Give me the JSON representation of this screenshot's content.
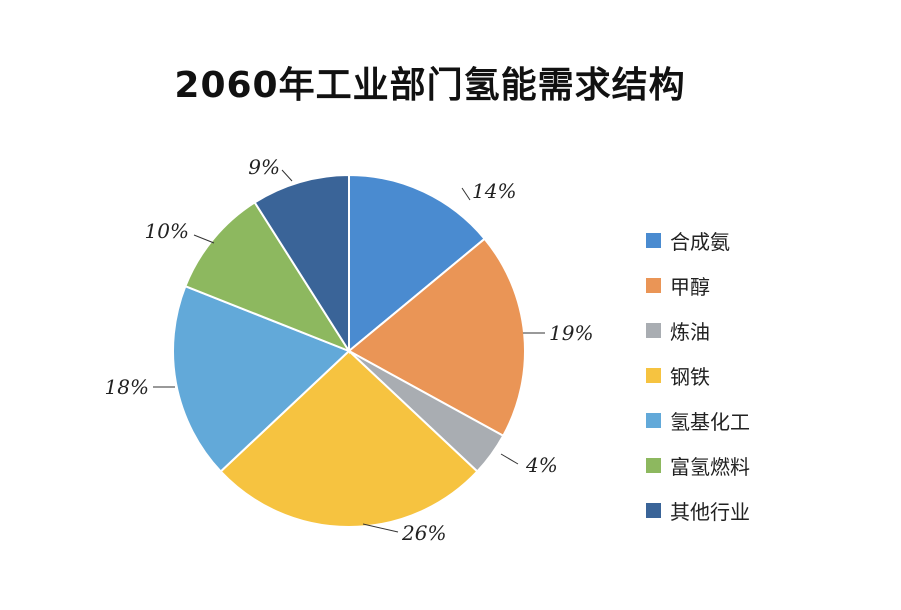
{
  "chart_data": {
    "type": "pie",
    "title": "2060年工业部门氢能需求结构",
    "slices": [
      {
        "label": "合成氨",
        "value": 14,
        "value_label": "14%",
        "color": "#4a8bd0"
      },
      {
        "label": "甲醇",
        "value": 19,
        "value_label": "19%",
        "color": "#ea9556"
      },
      {
        "label": "炼油",
        "value": 4,
        "value_label": "4%",
        "color": "#a9adb2"
      },
      {
        "label": "钢铁",
        "value": 26,
        "value_label": "26%",
        "color": "#f6c340"
      },
      {
        "label": "氢基化工",
        "value": 18,
        "value_label": "18%",
        "color": "#62a9d9"
      },
      {
        "label": "富氢燃料",
        "value": 10,
        "value_label": "10%",
        "color": "#8db85f"
      },
      {
        "label": "其他行业",
        "value": 9,
        "value_label": "9%",
        "color": "#3a6498"
      }
    ],
    "start": "12 o'clock",
    "direction": "clockwise",
    "legend_position": "right"
  }
}
